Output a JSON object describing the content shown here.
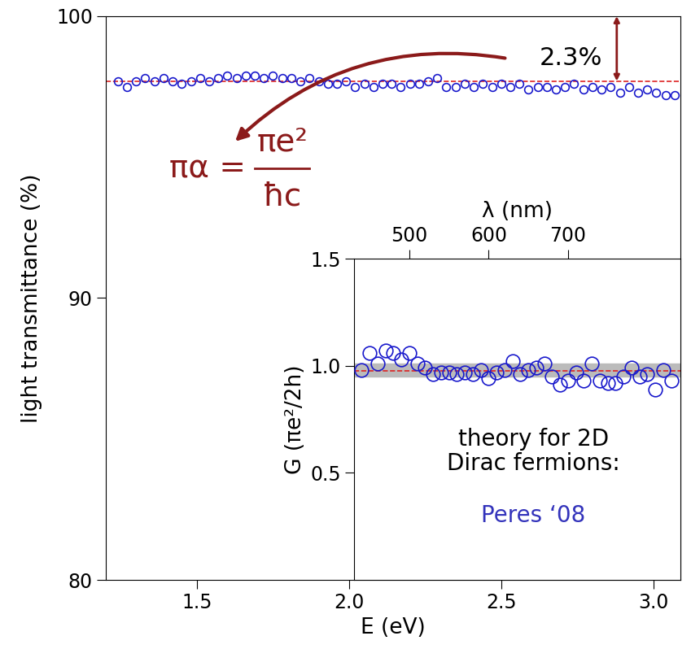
{
  "chart_data": [
    {
      "type": "scatter",
      "x_label": "E (eV)",
      "y_label": "light transmittance (%)",
      "x": [
        1.24,
        1.27,
        1.3,
        1.33,
        1.36,
        1.39,
        1.42,
        1.45,
        1.48,
        1.51,
        1.54,
        1.57,
        1.6,
        1.63,
        1.66,
        1.69,
        1.72,
        1.75,
        1.78,
        1.81,
        1.84,
        1.87,
        1.9,
        1.93,
        1.96,
        1.99,
        2.02,
        2.05,
        2.08,
        2.11,
        2.14,
        2.17,
        2.2,
        2.23,
        2.26,
        2.29,
        2.32,
        2.35,
        2.38,
        2.41,
        2.44,
        2.47,
        2.5,
        2.53,
        2.56,
        2.59,
        2.62,
        2.65,
        2.68,
        2.71,
        2.74,
        2.77,
        2.8,
        2.83,
        2.86,
        2.89,
        2.92,
        2.95,
        2.98,
        3.01,
        3.04,
        3.07
      ],
      "values": [
        97.7,
        97.5,
        97.7,
        97.8,
        97.7,
        97.8,
        97.7,
        97.6,
        97.7,
        97.8,
        97.7,
        97.8,
        97.9,
        97.8,
        97.9,
        97.9,
        97.8,
        97.9,
        97.8,
        97.8,
        97.7,
        97.8,
        97.7,
        97.6,
        97.6,
        97.7,
        97.5,
        97.6,
        97.5,
        97.6,
        97.6,
        97.5,
        97.6,
        97.6,
        97.7,
        97.8,
        97.5,
        97.5,
        97.6,
        97.5,
        97.6,
        97.5,
        97.6,
        97.5,
        97.6,
        97.4,
        97.5,
        97.5,
        97.4,
        97.5,
        97.6,
        97.4,
        97.5,
        97.4,
        97.5,
        97.3,
        97.5,
        97.3,
        97.4,
        97.3,
        97.2,
        97.2
      ],
      "color": "#1a1acc",
      "marker": "circle",
      "reference_value": 97.7,
      "reference_color": "#dd2222",
      "xlim": [
        1.2,
        3.09
      ],
      "xticks": [
        1.5,
        {
          "value": 2.0,
          "label": "2.0"
        },
        2.5,
        {
          "value": 3.0,
          "label": "3.0"
        }
      ],
      "ylim": [
        80,
        100
      ],
      "yticks": [
        80,
        90,
        100
      ],
      "annotations": {
        "difference": "2.3%",
        "formula_left": "πα =",
        "formula_numerator": "πe²",
        "formula_denominator": "ħc",
        "color": "#8b1a1a"
      }
    },
    {
      "type": "scatter",
      "x_label": "λ (nm)",
      "y_label": "G (πe²/2h)",
      "x": [
        440,
        450,
        460,
        470,
        480,
        490,
        500,
        510,
        520,
        530,
        540,
        550,
        560,
        570,
        580,
        590,
        600,
        610,
        620,
        630,
        640,
        650,
        660,
        670,
        680,
        690,
        700,
        710,
        720,
        730,
        740,
        750,
        760,
        770,
        780,
        790,
        800,
        810,
        820,
        830
      ],
      "values": [
        0.98,
        1.06,
        1.01,
        1.07,
        1.06,
        1.03,
        1.06,
        1.01,
        0.99,
        0.96,
        0.97,
        0.97,
        0.96,
        0.97,
        0.96,
        0.98,
        0.94,
        0.97,
        0.98,
        1.02,
        0.96,
        0.98,
        0.99,
        1.01,
        0.95,
        0.91,
        0.93,
        0.97,
        0.93,
        1.01,
        0.93,
        0.92,
        0.92,
        0.95,
        0.99,
        0.95,
        0.96,
        0.89,
        0.98,
        0.93
      ],
      "color": "#1a1acc",
      "marker": "circle",
      "reference_value": 0.977,
      "reference_color": "#dd2222",
      "reference_band": [
        0.95,
        1.01
      ],
      "xlim": [
        430,
        842
      ],
      "xticks": [
        500,
        600,
        700
      ],
      "ylim": [
        0.0,
        1.5
      ],
      "yticks": [
        0.5,
        {
          "value": 1.0,
          "label": "1.0"
        },
        1.5
      ],
      "annotations": {
        "theory": "theory for 2D\nDirac fermions:",
        "reference": "Peres ‘08",
        "reference_text_color": "#3333bb"
      }
    }
  ]
}
